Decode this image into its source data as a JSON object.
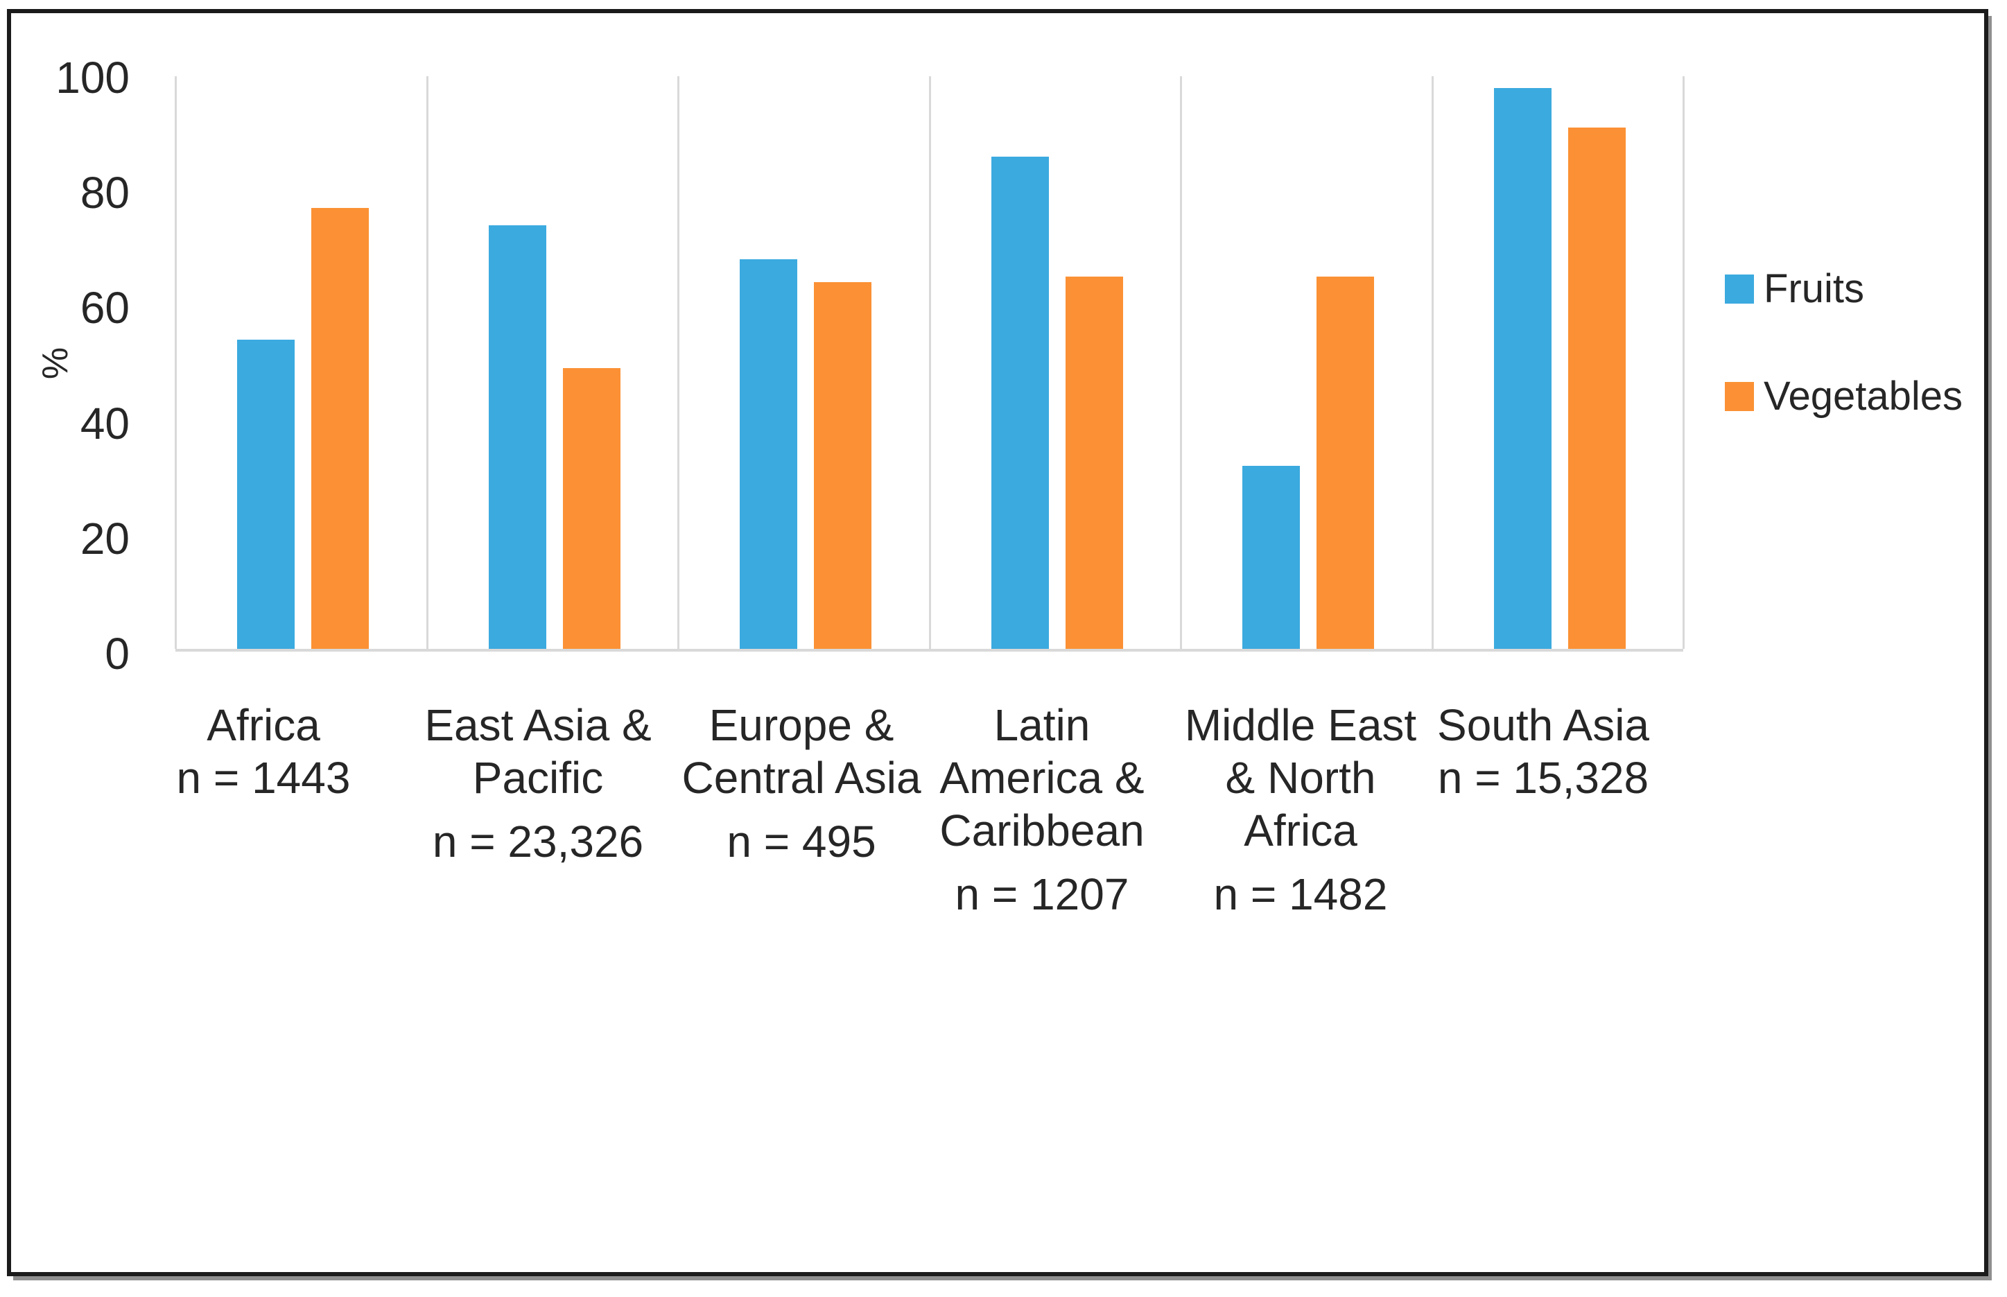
{
  "chart_data": {
    "type": "bar",
    "title": "",
    "xlabel": "",
    "ylabel": "%",
    "ylim": [
      0,
      100
    ],
    "yticks": [
      0,
      20,
      40,
      60,
      80,
      100
    ],
    "grid": "vertical category separators, light gray",
    "legend_position": "right",
    "categories": [
      {
        "label_lines": [
          "Africa",
          "n = 1443"
        ],
        "region": "Africa",
        "n": "1443"
      },
      {
        "label_lines": [
          "East Asia &",
          "Pacific",
          "n = 23,326"
        ],
        "region": "East Asia & Pacific",
        "n": "23,326"
      },
      {
        "label_lines": [
          "Europe &",
          "Central Asia",
          "n = 495"
        ],
        "region": "Europe & Central Asia",
        "n": "495"
      },
      {
        "label_lines": [
          "Latin",
          "America &",
          "Caribbean",
          "n = 1207"
        ],
        "region": "Latin America & Caribbean",
        "n": "1207"
      },
      {
        "label_lines": [
          "Middle East",
          "& North",
          "Africa",
          "n = 1482"
        ],
        "region": "Middle East & North Africa",
        "n": "1482"
      },
      {
        "label_lines": [
          "South Asia",
          "n = 15,328"
        ],
        "region": "South Asia",
        "n": "15,328"
      }
    ],
    "series": [
      {
        "name": "Fruits",
        "color": "#3BAADF",
        "values": [
          54,
          74,
          68,
          86,
          32,
          98
        ]
      },
      {
        "name": "Vegetables",
        "color": "#FB9134",
        "values": [
          77,
          49,
          64,
          65,
          65,
          91
        ]
      }
    ]
  },
  "legend": {
    "items": [
      {
        "label": "Fruits",
        "color": "#3BAADF"
      },
      {
        "label": "Vegetables",
        "color": "#FB9134"
      }
    ]
  },
  "colors": {
    "gridline": "#d9d9d9",
    "text": "#262626",
    "frame_border": "#1b1b1b",
    "frame_shadow": "#8f8f8f"
  }
}
